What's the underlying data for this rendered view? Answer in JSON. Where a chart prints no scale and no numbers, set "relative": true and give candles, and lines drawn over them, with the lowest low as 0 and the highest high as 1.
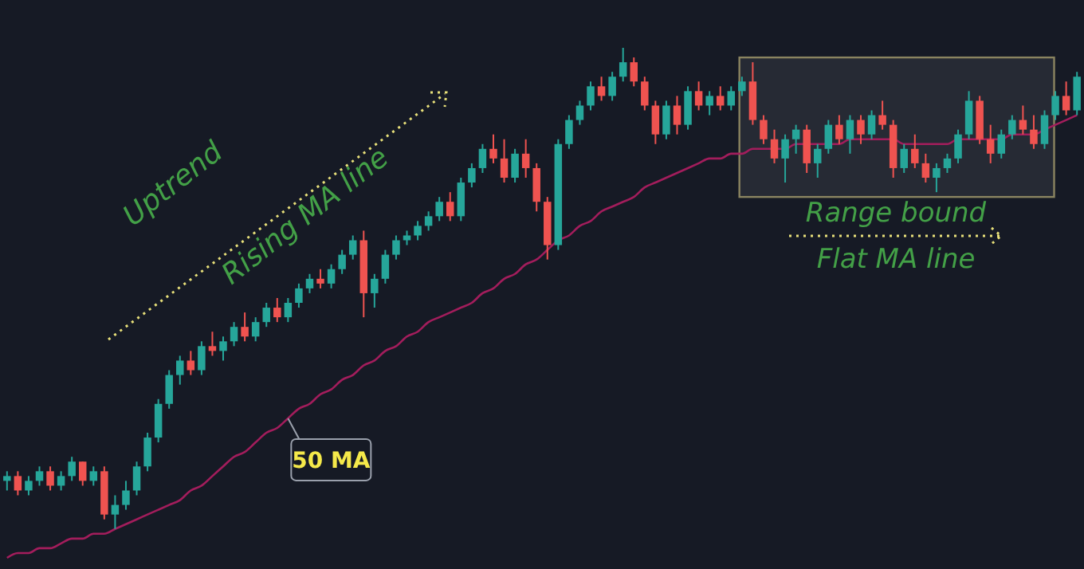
{
  "chart_data": {
    "type": "candlestick",
    "relative": true,
    "categories": [
      null,
      null,
      null,
      null,
      null,
      null,
      null,
      null,
      null,
      null,
      null,
      null,
      null,
      null,
      null,
      null,
      null,
      null,
      null,
      null,
      null,
      null,
      null,
      null,
      null,
      null,
      null,
      null,
      null,
      null,
      null,
      null,
      null,
      null,
      null,
      null,
      null,
      null,
      null,
      null,
      null,
      null,
      null,
      null,
      null,
      null,
      null,
      null,
      null,
      null,
      null,
      null,
      null,
      null,
      null,
      null,
      null,
      null,
      null,
      null,
      null,
      null,
      null,
      null,
      null,
      null,
      null,
      null,
      null,
      null,
      null,
      null,
      null,
      null,
      null,
      null,
      null,
      null,
      null,
      null,
      null,
      null,
      null,
      null,
      null,
      null,
      null,
      null,
      null,
      null,
      null,
      null,
      null,
      null,
      null,
      null,
      null,
      null,
      null,
      null
    ],
    "ohlc": [
      [
        0.1,
        0.12,
        0.08,
        0.11
      ],
      [
        0.11,
        0.12,
        0.07,
        0.08
      ],
      [
        0.08,
        0.11,
        0.07,
        0.1
      ],
      [
        0.1,
        0.13,
        0.09,
        0.12
      ],
      [
        0.12,
        0.13,
        0.08,
        0.09
      ],
      [
        0.09,
        0.12,
        0.08,
        0.11
      ],
      [
        0.11,
        0.15,
        0.1,
        0.14
      ],
      [
        0.14,
        0.14,
        0.09,
        0.1
      ],
      [
        0.1,
        0.13,
        0.09,
        0.12
      ],
      [
        0.12,
        0.13,
        0.02,
        0.03
      ],
      [
        0.03,
        0.07,
        0.0,
        0.05
      ],
      [
        0.05,
        0.1,
        0.04,
        0.08
      ],
      [
        0.08,
        0.14,
        0.07,
        0.13
      ],
      [
        0.13,
        0.2,
        0.12,
        0.19
      ],
      [
        0.19,
        0.27,
        0.18,
        0.26
      ],
      [
        0.26,
        0.33,
        0.25,
        0.32
      ],
      [
        0.32,
        0.36,
        0.3,
        0.35
      ],
      [
        0.35,
        0.37,
        0.32,
        0.33
      ],
      [
        0.33,
        0.39,
        0.32,
        0.38
      ],
      [
        0.38,
        0.41,
        0.36,
        0.37
      ],
      [
        0.37,
        0.4,
        0.35,
        0.39
      ],
      [
        0.39,
        0.43,
        0.38,
        0.42
      ],
      [
        0.42,
        0.45,
        0.39,
        0.4
      ],
      [
        0.4,
        0.44,
        0.39,
        0.43
      ],
      [
        0.43,
        0.47,
        0.42,
        0.46
      ],
      [
        0.46,
        0.48,
        0.43,
        0.44
      ],
      [
        0.44,
        0.48,
        0.43,
        0.47
      ],
      [
        0.47,
        0.51,
        0.46,
        0.5
      ],
      [
        0.5,
        0.53,
        0.49,
        0.52
      ],
      [
        0.52,
        0.54,
        0.5,
        0.51
      ],
      [
        0.51,
        0.55,
        0.5,
        0.54
      ],
      [
        0.54,
        0.58,
        0.53,
        0.57
      ],
      [
        0.57,
        0.61,
        0.56,
        0.6
      ],
      [
        0.6,
        0.62,
        0.44,
        0.49
      ],
      [
        0.49,
        0.53,
        0.46,
        0.52
      ],
      [
        0.52,
        0.58,
        0.51,
        0.57
      ],
      [
        0.57,
        0.61,
        0.56,
        0.6
      ],
      [
        0.6,
        0.62,
        0.59,
        0.61
      ],
      [
        0.61,
        0.64,
        0.6,
        0.63
      ],
      [
        0.63,
        0.66,
        0.62,
        0.65
      ],
      [
        0.65,
        0.69,
        0.64,
        0.68
      ],
      [
        0.68,
        0.7,
        0.64,
        0.65
      ],
      [
        0.65,
        0.73,
        0.64,
        0.72
      ],
      [
        0.72,
        0.76,
        0.71,
        0.75
      ],
      [
        0.75,
        0.8,
        0.74,
        0.79
      ],
      [
        0.79,
        0.82,
        0.76,
        0.77
      ],
      [
        0.77,
        0.81,
        0.72,
        0.73
      ],
      [
        0.73,
        0.79,
        0.72,
        0.78
      ],
      [
        0.78,
        0.81,
        0.73,
        0.75
      ],
      [
        0.75,
        0.76,
        0.66,
        0.68
      ],
      [
        0.68,
        0.69,
        0.56,
        0.59
      ],
      [
        0.59,
        0.81,
        0.58,
        0.8
      ],
      [
        0.8,
        0.86,
        0.79,
        0.85
      ],
      [
        0.85,
        0.89,
        0.84,
        0.88
      ],
      [
        0.88,
        0.93,
        0.87,
        0.92
      ],
      [
        0.92,
        0.94,
        0.89,
        0.9
      ],
      [
        0.9,
        0.95,
        0.89,
        0.94
      ],
      [
        0.94,
        1.0,
        0.93,
        0.97
      ],
      [
        0.97,
        0.98,
        0.92,
        0.93
      ],
      [
        0.93,
        0.94,
        0.87,
        0.88
      ],
      [
        0.88,
        0.89,
        0.8,
        0.82
      ],
      [
        0.82,
        0.89,
        0.81,
        0.88
      ],
      [
        0.88,
        0.9,
        0.82,
        0.84
      ],
      [
        0.84,
        0.92,
        0.83,
        0.91
      ],
      [
        0.91,
        0.93,
        0.87,
        0.88
      ],
      [
        0.88,
        0.91,
        0.86,
        0.9
      ],
      [
        0.9,
        0.92,
        0.87,
        0.88
      ],
      [
        0.88,
        0.92,
        0.87,
        0.91
      ],
      [
        0.91,
        0.94,
        0.9,
        0.93
      ],
      [
        0.93,
        0.97,
        0.84,
        0.85
      ],
      [
        0.85,
        0.86,
        0.8,
        0.81
      ],
      [
        0.81,
        0.83,
        0.76,
        0.77
      ],
      [
        0.77,
        0.82,
        0.72,
        0.81
      ],
      [
        0.81,
        0.84,
        0.78,
        0.83
      ],
      [
        0.83,
        0.84,
        0.74,
        0.76
      ],
      [
        0.76,
        0.8,
        0.73,
        0.79
      ],
      [
        0.79,
        0.85,
        0.78,
        0.84
      ],
      [
        0.84,
        0.86,
        0.8,
        0.81
      ],
      [
        0.81,
        0.86,
        0.78,
        0.85
      ],
      [
        0.85,
        0.86,
        0.8,
        0.82
      ],
      [
        0.82,
        0.87,
        0.81,
        0.86
      ],
      [
        0.86,
        0.89,
        0.83,
        0.84
      ],
      [
        0.84,
        0.85,
        0.73,
        0.75
      ],
      [
        0.75,
        0.8,
        0.74,
        0.79
      ],
      [
        0.79,
        0.82,
        0.75,
        0.76
      ],
      [
        0.76,
        0.78,
        0.72,
        0.73
      ],
      [
        0.73,
        0.76,
        0.7,
        0.75
      ],
      [
        0.75,
        0.78,
        0.74,
        0.77
      ],
      [
        0.77,
        0.83,
        0.76,
        0.82
      ],
      [
        0.82,
        0.91,
        0.81,
        0.89
      ],
      [
        0.89,
        0.9,
        0.8,
        0.81
      ],
      [
        0.81,
        0.84,
        0.76,
        0.78
      ],
      [
        0.78,
        0.83,
        0.77,
        0.82
      ],
      [
        0.82,
        0.86,
        0.81,
        0.85
      ],
      [
        0.85,
        0.88,
        0.82,
        0.83
      ],
      [
        0.83,
        0.86,
        0.79,
        0.8
      ],
      [
        0.8,
        0.87,
        0.79,
        0.86
      ],
      [
        0.86,
        0.91,
        0.85,
        0.9
      ],
      [
        0.9,
        0.93,
        0.86,
        0.87
      ],
      [
        0.87,
        0.95,
        0.86,
        0.94
      ]
    ],
    "series": [
      {
        "type": "line",
        "name": "50 MA",
        "color": "#a31d5c",
        "values": [
          -0.06,
          -0.05,
          -0.05,
          -0.04,
          -0.04,
          -0.03,
          -0.02,
          -0.02,
          -0.01,
          -0.01,
          0.0,
          0.01,
          0.02,
          0.03,
          0.04,
          0.05,
          0.06,
          0.08,
          0.09,
          0.11,
          0.13,
          0.15,
          0.16,
          0.18,
          0.2,
          0.21,
          0.23,
          0.25,
          0.26,
          0.28,
          0.29,
          0.31,
          0.32,
          0.34,
          0.35,
          0.37,
          0.38,
          0.4,
          0.41,
          0.43,
          0.44,
          0.45,
          0.46,
          0.47,
          0.49,
          0.5,
          0.52,
          0.53,
          0.55,
          0.56,
          0.58,
          0.6,
          0.61,
          0.63,
          0.64,
          0.66,
          0.67,
          0.68,
          0.69,
          0.71,
          0.72,
          0.73,
          0.74,
          0.75,
          0.76,
          0.77,
          0.77,
          0.78,
          0.78,
          0.79,
          0.79,
          0.79,
          0.79,
          0.8,
          0.8,
          0.8,
          0.8,
          0.8,
          0.81,
          0.81,
          0.81,
          0.81,
          0.81,
          0.8,
          0.8,
          0.8,
          0.8,
          0.8,
          0.81,
          0.81,
          0.81,
          0.81,
          0.81,
          0.82,
          0.82,
          0.82,
          0.83,
          0.84,
          0.85,
          0.86
        ]
      }
    ],
    "annotations": [
      "Uptrend",
      "Rising MA line",
      "Range bound",
      "Flat MA line"
    ]
  }
}
